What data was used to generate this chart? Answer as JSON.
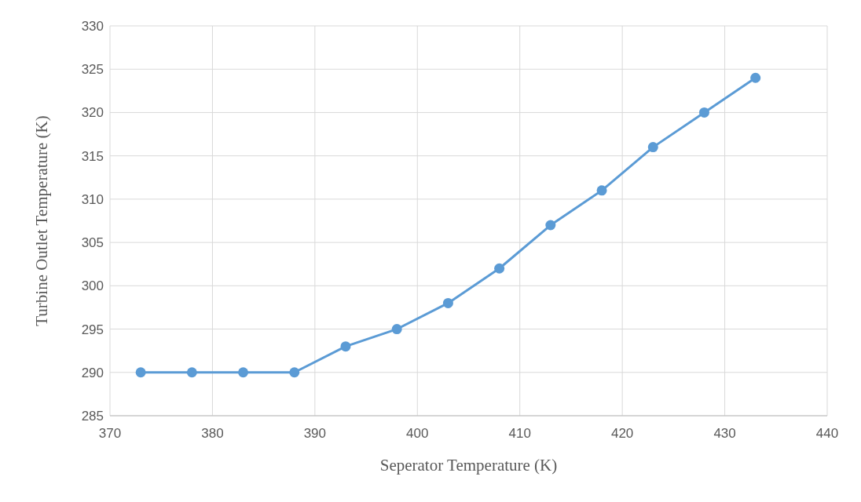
{
  "chart_data": {
    "type": "line",
    "xlabel": "Seperator Temperature (K)",
    "ylabel": "Turbine Outlet Temperature (K)",
    "x": [
      373,
      378,
      383,
      388,
      393,
      398,
      403,
      408,
      413,
      418,
      423,
      428,
      433
    ],
    "series": [
      {
        "color": "#5b9bd5",
        "values": [
          290,
          290,
          290,
          290,
          293,
          295,
          298,
          302,
          307,
          311,
          316,
          320,
          324
        ]
      }
    ],
    "xlim": [
      370,
      440
    ],
    "xticks": [
      370,
      380,
      390,
      400,
      410,
      420,
      430,
      440
    ],
    "ylim": [
      285,
      330
    ],
    "yticks": [
      285,
      290,
      295,
      300,
      305,
      310,
      315,
      320,
      325,
      330
    ],
    "grid": true,
    "marker": "circle",
    "line_style": "solid"
  }
}
